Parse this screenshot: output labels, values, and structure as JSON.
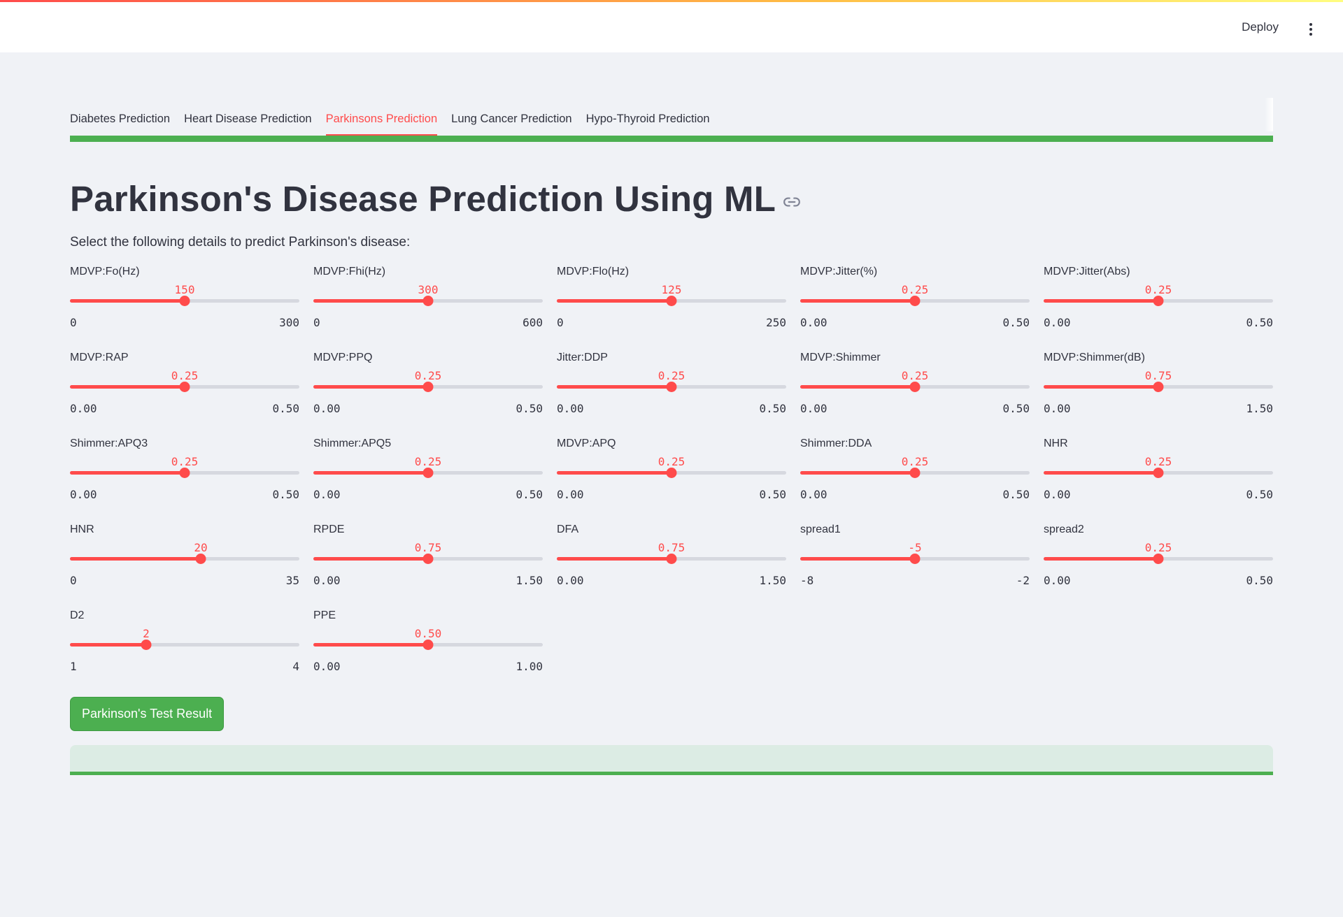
{
  "header": {
    "deploy_label": "Deploy",
    "menu_icon": "kebab-menu-icon"
  },
  "tabs": [
    {
      "label": "Diabetes Prediction",
      "active": false
    },
    {
      "label": "Heart Disease Prediction",
      "active": false
    },
    {
      "label": "Parkinsons Prediction",
      "active": true
    },
    {
      "label": "Lung Cancer Prediction",
      "active": false
    },
    {
      "label": "Hypo-Thyroid Prediction",
      "active": false
    }
  ],
  "page": {
    "title": "Parkinson's Disease Prediction Using ML",
    "subtitle": "Select the following details to predict Parkinson's disease:",
    "link_icon": "link-icon"
  },
  "sliders": [
    {
      "label": "MDVP:Fo(Hz)",
      "value": "150",
      "min": "0",
      "max": "300",
      "fraction": 0.5
    },
    {
      "label": "MDVP:Fhi(Hz)",
      "value": "300",
      "min": "0",
      "max": "600",
      "fraction": 0.5
    },
    {
      "label": "MDVP:Flo(Hz)",
      "value": "125",
      "min": "0",
      "max": "250",
      "fraction": 0.5
    },
    {
      "label": "MDVP:Jitter(%)",
      "value": "0.25",
      "min": "0.00",
      "max": "0.50",
      "fraction": 0.5
    },
    {
      "label": "MDVP:Jitter(Abs)",
      "value": "0.25",
      "min": "0.00",
      "max": "0.50",
      "fraction": 0.5
    },
    {
      "label": "MDVP:RAP",
      "value": "0.25",
      "min": "0.00",
      "max": "0.50",
      "fraction": 0.5
    },
    {
      "label": "MDVP:PPQ",
      "value": "0.25",
      "min": "0.00",
      "max": "0.50",
      "fraction": 0.5
    },
    {
      "label": "Jitter:DDP",
      "value": "0.25",
      "min": "0.00",
      "max": "0.50",
      "fraction": 0.5
    },
    {
      "label": "MDVP:Shimmer",
      "value": "0.25",
      "min": "0.00",
      "max": "0.50",
      "fraction": 0.5
    },
    {
      "label": "MDVP:Shimmer(dB)",
      "value": "0.75",
      "min": "0.00",
      "max": "1.50",
      "fraction": 0.5
    },
    {
      "label": "Shimmer:APQ3",
      "value": "0.25",
      "min": "0.00",
      "max": "0.50",
      "fraction": 0.5
    },
    {
      "label": "Shimmer:APQ5",
      "value": "0.25",
      "min": "0.00",
      "max": "0.50",
      "fraction": 0.5
    },
    {
      "label": "MDVP:APQ",
      "value": "0.25",
      "min": "0.00",
      "max": "0.50",
      "fraction": 0.5
    },
    {
      "label": "Shimmer:DDA",
      "value": "0.25",
      "min": "0.00",
      "max": "0.50",
      "fraction": 0.5
    },
    {
      "label": "NHR",
      "value": "0.25",
      "min": "0.00",
      "max": "0.50",
      "fraction": 0.5
    },
    {
      "label": "HNR",
      "value": "20",
      "min": "0",
      "max": "35",
      "fraction": 0.5714
    },
    {
      "label": "RPDE",
      "value": "0.75",
      "min": "0.00",
      "max": "1.50",
      "fraction": 0.5
    },
    {
      "label": "DFA",
      "value": "0.75",
      "min": "0.00",
      "max": "1.50",
      "fraction": 0.5
    },
    {
      "label": "spread1",
      "value": "-5",
      "min": "-8",
      "max": "-2",
      "fraction": 0.5
    },
    {
      "label": "spread2",
      "value": "0.25",
      "min": "0.00",
      "max": "0.50",
      "fraction": 0.5
    },
    {
      "label": "D2",
      "value": "2",
      "min": "1",
      "max": "4",
      "fraction": 0.3333
    },
    {
      "label": "PPE",
      "value": "0.50",
      "min": "0.00",
      "max": "1.00",
      "fraction": 0.5
    }
  ],
  "button": {
    "label": "Parkinson's Test Result"
  },
  "result": {
    "text": ""
  },
  "colors": {
    "accent": "#ff4b4b",
    "success": "#4caf50",
    "background": "#f0f2f6"
  }
}
